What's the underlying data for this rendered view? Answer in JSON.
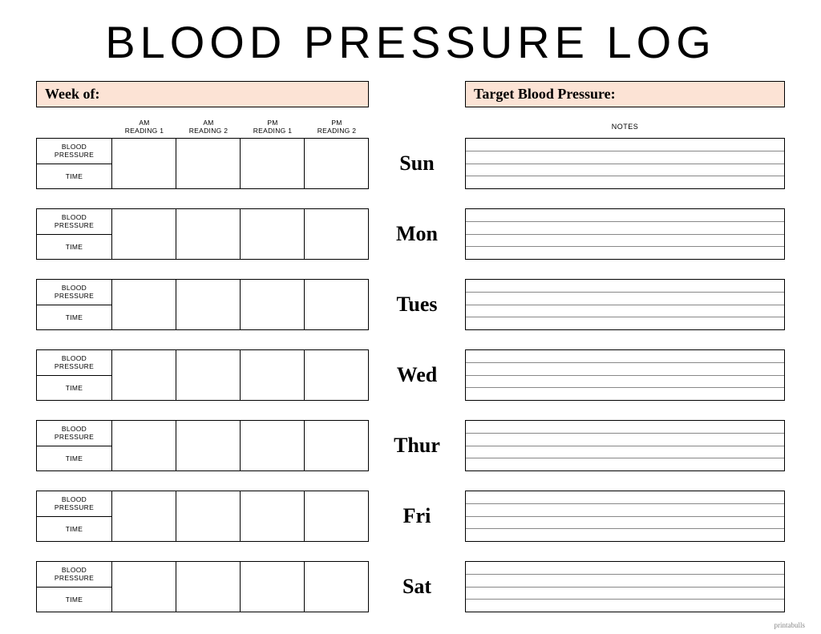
{
  "title": "BLOOD PRESSURE LOG",
  "header": {
    "week_of_label": "Week of:",
    "target_label": "Target Blood Pressure:"
  },
  "colors": {
    "accent": "#fce3d5",
    "border": "#000000",
    "background": "#ffffff",
    "note_line": "#888888"
  },
  "reading_columns": [
    {
      "line1": "AM",
      "line2": "READING 1"
    },
    {
      "line1": "AM",
      "line2": "READING 2"
    },
    {
      "line1": "PM",
      "line2": "READING 1"
    },
    {
      "line1": "PM",
      "line2": "READING 2"
    }
  ],
  "row_labels": {
    "bp_line1": "BLOOD",
    "bp_line2": "PRESSURE",
    "time": "TIME"
  },
  "notes_label": "NOTES",
  "days": [
    "Sun",
    "Mon",
    "Tues",
    "Wed",
    "Thur",
    "Fri",
    "Sat"
  ],
  "note_lines_per_box": 4,
  "watermark": "printabulls"
}
